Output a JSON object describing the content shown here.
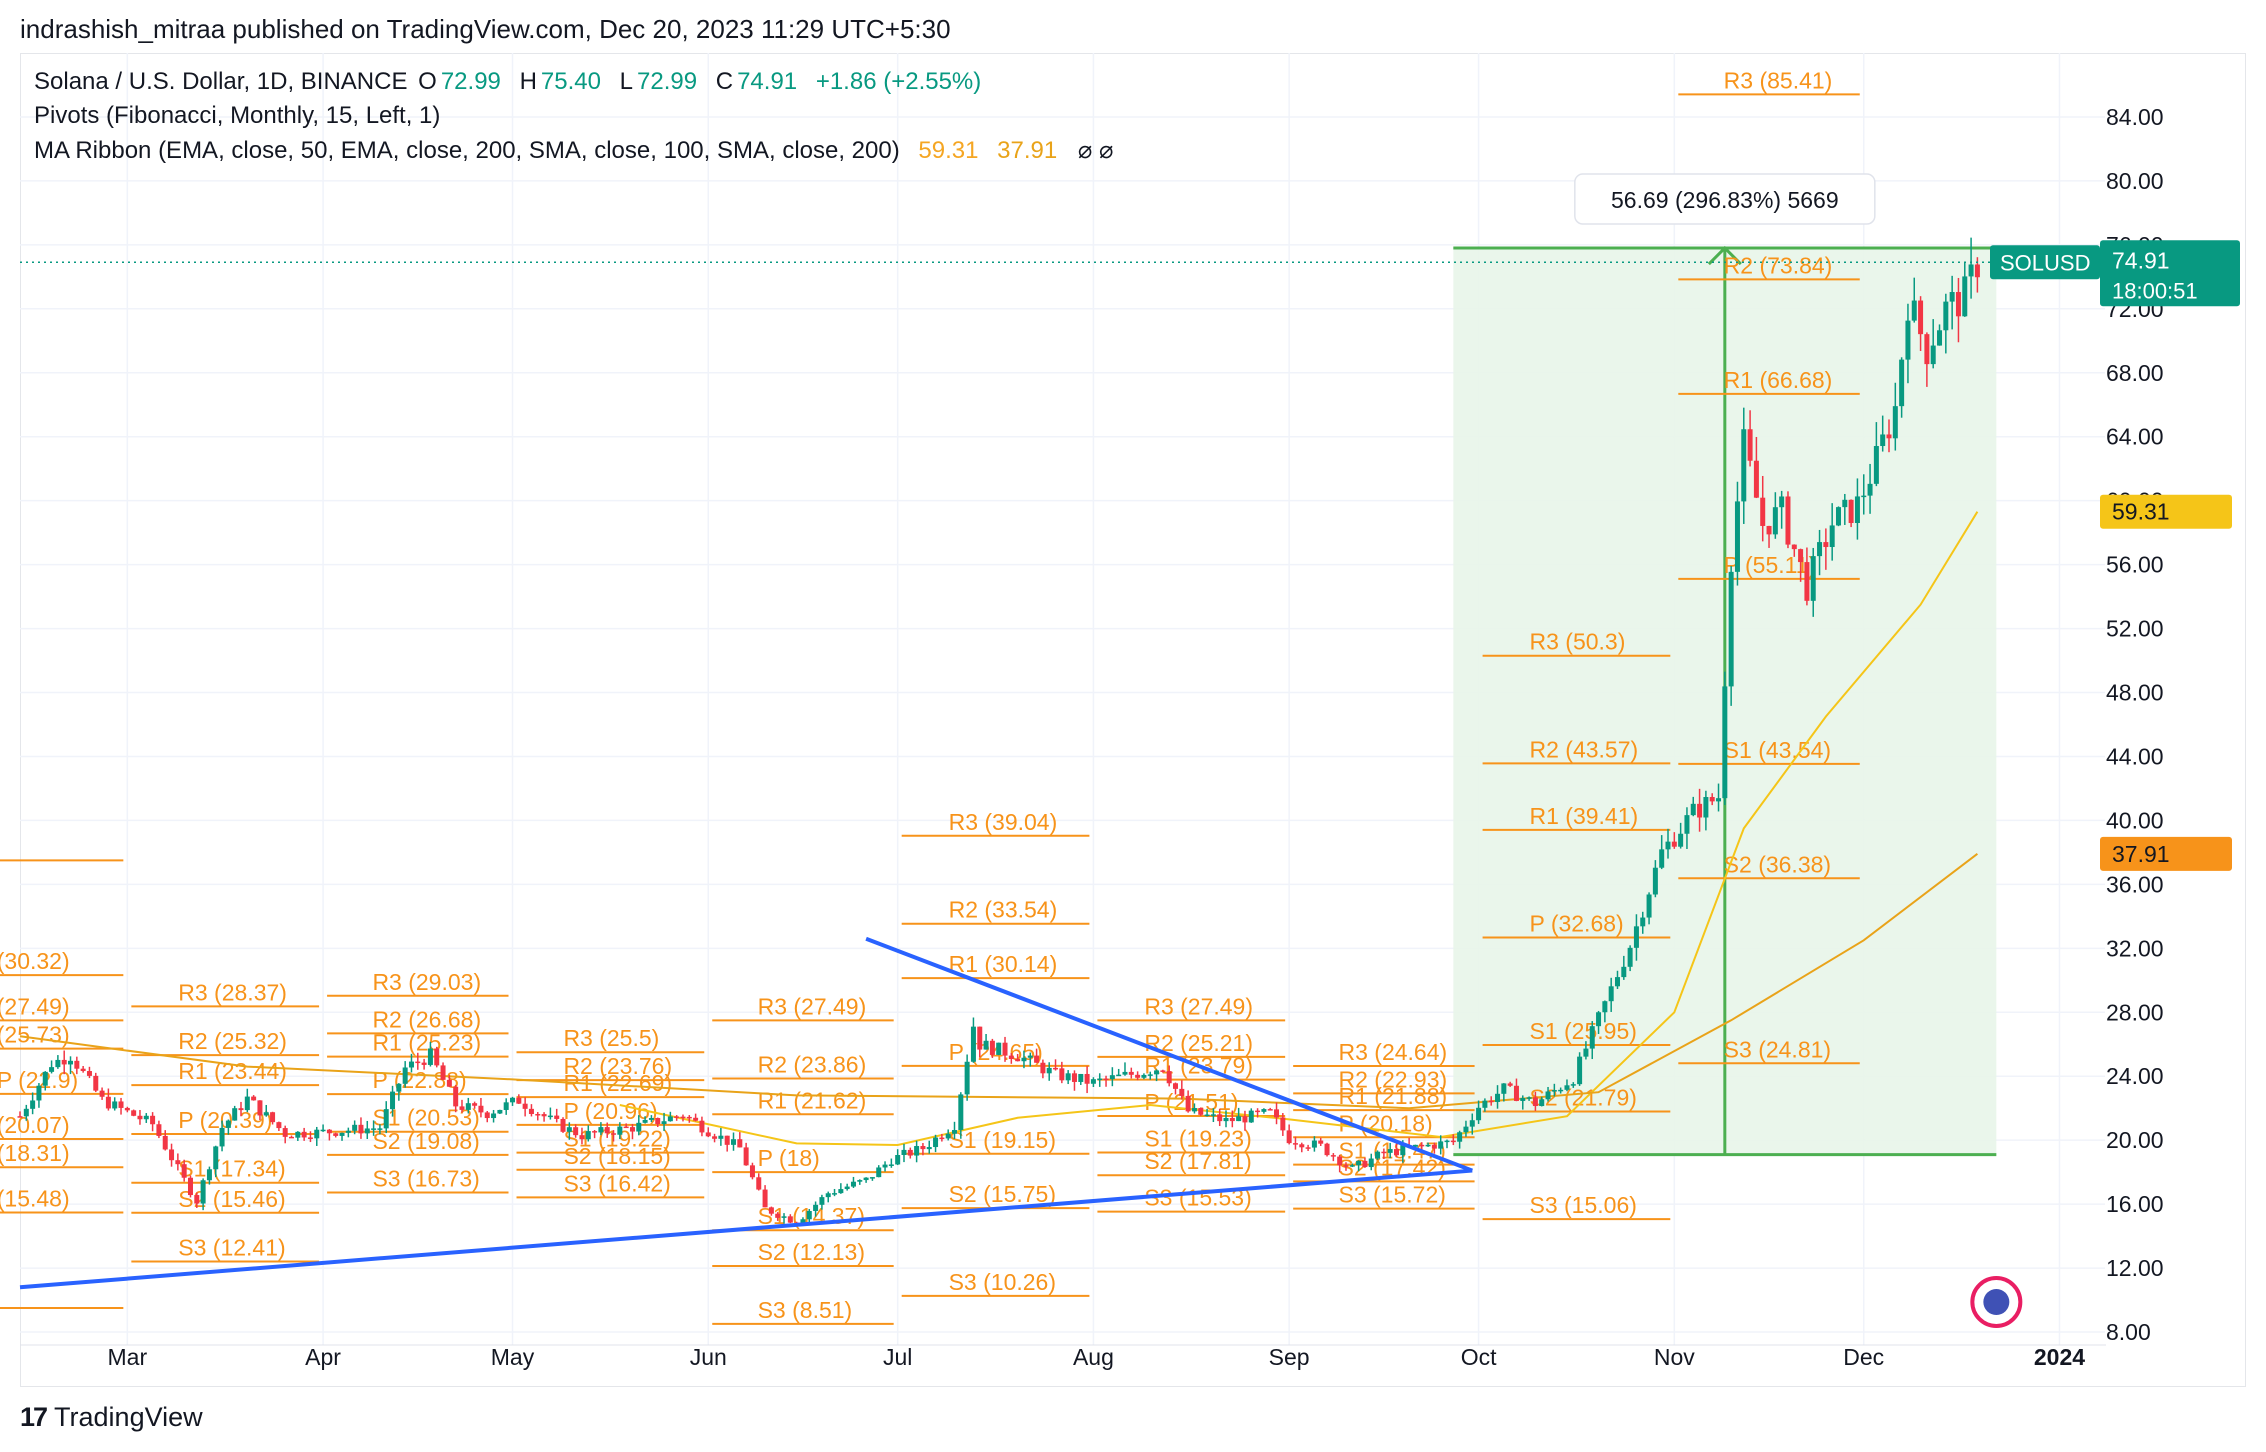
{
  "header": {
    "credit": "indrashish_mitraa published on TradingView.com, Dec 20, 2023 11:29 UTC+5:30"
  },
  "legend": {
    "line1": {
      "symbol": "Solana / U.S. Dollar, 1D, BINANCE",
      "o_label": "O",
      "o": "72.99",
      "h_label": "H",
      "h": "75.40",
      "l_label": "L",
      "l": "72.99",
      "c_label": "C",
      "c": "74.91",
      "change": "+1.86 (+2.55%)"
    },
    "line2": "Pivots (Fibonacci, Monthly, 15, Left, 1)",
    "line3": {
      "text": "MA Ribbon (EMA, close, 50, EMA, close, 200, SMA, close, 100, SMA, close, 200)",
      "v1": "59.31",
      "v2": "37.91",
      "icons": "⌀ ⌀"
    }
  },
  "footer": {
    "brand": "TradingView",
    "mark": "17"
  },
  "colors": {
    "up": "#089981",
    "down": "#f23645",
    "pivot": "#f7931a",
    "ma50": "#f5c518",
    "ma200": "#e9a319",
    "trend": "#2962ff",
    "measure": "#4caf50",
    "measure_fill": "#e8f5e9"
  },
  "chart_data": {
    "type": "candlestick",
    "title": "Solana / U.S. Dollar, 1D, BINANCE",
    "y_axis": {
      "ticks": [
        "8.00",
        "12.00",
        "16.00",
        "20.00",
        "24.00",
        "28.00",
        "32.00",
        "36.00",
        "40.00",
        "44.00",
        "48.00",
        "52.00",
        "56.00",
        "60.00",
        "64.00",
        "68.00",
        "72.00",
        "76.00",
        "80.00",
        "84.00"
      ],
      "range": [
        5,
        88
      ],
      "side": "right"
    },
    "x_axis": {
      "ticks": [
        {
          "label": "Mar",
          "date": "2023-03-01"
        },
        {
          "label": "Apr",
          "date": "2023-04-01"
        },
        {
          "label": "May",
          "date": "2023-05-01"
        },
        {
          "label": "Jun",
          "date": "2023-06-01"
        },
        {
          "label": "Jul",
          "date": "2023-07-01"
        },
        {
          "label": "Aug",
          "date": "2023-08-01"
        },
        {
          "label": "Sep",
          "date": "2023-09-01"
        },
        {
          "label": "Oct",
          "date": "2023-10-01"
        },
        {
          "label": "Nov",
          "date": "2023-11-01"
        },
        {
          "label": "Dec",
          "date": "2023-12-01"
        },
        {
          "label": "2024",
          "date": "2024-01-01"
        }
      ],
      "range": [
        "2023-02-12",
        "2024-01-09"
      ]
    },
    "price_line": {
      "value": 74.91,
      "symbol": "SOLUSD",
      "label": "74.91",
      "countdown": "18:00:51"
    },
    "ma_labels": [
      {
        "value": 59.31,
        "label": "59.31"
      },
      {
        "value": 37.91,
        "label": "37.91"
      }
    ],
    "close_path": [
      [
        "2023-02-12",
        21.5
      ],
      [
        "2023-02-17",
        24.8
      ],
      [
        "2023-02-20",
        25.3
      ],
      [
        "2023-02-25",
        22.5
      ],
      [
        "2023-03-05",
        21.0
      ],
      [
        "2023-03-10",
        17.5
      ],
      [
        "2023-03-12",
        16.2
      ],
      [
        "2023-03-16",
        20.8
      ],
      [
        "2023-03-20",
        22.6
      ],
      [
        "2023-03-26",
        20.4
      ],
      [
        "2023-04-01",
        20.5
      ],
      [
        "2023-04-10",
        20.8
      ],
      [
        "2023-04-14",
        24.5
      ],
      [
        "2023-04-18",
        25.3
      ],
      [
        "2023-04-22",
        22.2
      ],
      [
        "2023-04-27",
        21.7
      ],
      [
        "2023-05-02",
        22.5
      ],
      [
        "2023-05-08",
        21.0
      ],
      [
        "2023-05-12",
        20.3
      ],
      [
        "2023-05-20",
        20.8
      ],
      [
        "2023-05-28",
        21.6
      ],
      [
        "2023-06-01",
        20.6
      ],
      [
        "2023-06-06",
        19.5
      ],
      [
        "2023-06-10",
        15.7
      ],
      [
        "2023-06-15",
        14.9
      ],
      [
        "2023-06-20",
        16.7
      ],
      [
        "2023-06-26",
        17.5
      ],
      [
        "2023-06-30",
        18.8
      ],
      [
        "2023-07-05",
        19.5
      ],
      [
        "2023-07-10",
        21.0
      ],
      [
        "2023-07-13",
        27.2
      ],
      [
        "2023-07-14",
        26.0
      ],
      [
        "2023-07-20",
        25.3
      ],
      [
        "2023-07-26",
        24.1
      ],
      [
        "2023-08-01",
        23.6
      ],
      [
        "2023-08-08",
        24.2
      ],
      [
        "2023-08-12",
        24.6
      ],
      [
        "2023-08-16",
        21.8
      ],
      [
        "2023-08-22",
        21.2
      ],
      [
        "2023-08-29",
        21.7
      ],
      [
        "2023-09-01",
        20.1
      ],
      [
        "2023-09-06",
        19.6
      ],
      [
        "2023-09-11",
        18.2
      ],
      [
        "2023-09-16",
        19.2
      ],
      [
        "2023-09-22",
        19.6
      ],
      [
        "2023-09-27",
        19.9
      ],
      [
        "2023-10-01",
        22.1
      ],
      [
        "2023-10-05",
        23.2
      ],
      [
        "2023-10-10",
        22.3
      ],
      [
        "2023-10-16",
        23.9
      ],
      [
        "2023-10-20",
        27.6
      ],
      [
        "2023-10-25",
        32.2
      ],
      [
        "2023-10-30",
        38.0
      ],
      [
        "2023-11-04",
        40.5
      ],
      [
        "2023-11-08",
        41.5
      ],
      [
        "2023-11-10",
        56.5
      ],
      [
        "2023-11-12",
        63.5
      ],
      [
        "2023-11-15",
        58.5
      ],
      [
        "2023-11-18",
        59.3
      ],
      [
        "2023-11-22",
        54.6
      ],
      [
        "2023-11-26",
        58.6
      ],
      [
        "2023-11-30",
        59.7
      ],
      [
        "2023-12-03",
        62.5
      ],
      [
        "2023-12-06",
        65.8
      ],
      [
        "2023-12-08",
        72.5
      ],
      [
        "2023-12-11",
        69.5
      ],
      [
        "2023-12-14",
        72.0
      ],
      [
        "2023-12-17",
        72.8
      ],
      [
        "2023-12-19",
        74.91
      ]
    ],
    "ma_ribbon": [
      {
        "name": "EMA 50",
        "color": "#f5c518",
        "points": [
          [
            "2023-05-18",
            22.2
          ],
          [
            "2023-06-15",
            19.8
          ],
          [
            "2023-07-01",
            19.7
          ],
          [
            "2023-07-20",
            21.4
          ],
          [
            "2023-08-10",
            22.2
          ],
          [
            "2023-09-01",
            21.3
          ],
          [
            "2023-09-25",
            20.2
          ],
          [
            "2023-10-15",
            21.5
          ],
          [
            "2023-11-01",
            28.0
          ],
          [
            "2023-11-12",
            39.5
          ],
          [
            "2023-11-25",
            46.5
          ],
          [
            "2023-12-10",
            53.5
          ],
          [
            "2023-12-19",
            59.31
          ]
        ]
      },
      {
        "name": "EMA 200",
        "color": "#e9a319",
        "points": [
          [
            "2023-02-12",
            26.5
          ],
          [
            "2023-03-20",
            24.6
          ],
          [
            "2023-05-01",
            23.8
          ],
          [
            "2023-06-15",
            22.8
          ],
          [
            "2023-08-15",
            22.6
          ],
          [
            "2023-09-20",
            22.0
          ],
          [
            "2023-10-20",
            23.0
          ],
          [
            "2023-11-10",
            27.5
          ],
          [
            "2023-12-01",
            32.5
          ],
          [
            "2023-12-19",
            37.91
          ]
        ]
      }
    ],
    "pivot_levels": [
      {
        "period": [
          "2023-02-01",
          "2023-03-01"
        ],
        "levels": [
          [
            "R3",
            30.32,
            "(30.32)"
          ],
          [
            "R2",
            27.49,
            "(27.49)"
          ],
          [
            "R1",
            25.73,
            "(25.73)"
          ],
          [
            "P",
            22.9,
            "P (22.9)"
          ],
          [
            "S1",
            20.07,
            "(20.07)"
          ],
          [
            "S2",
            18.31,
            "(18.31)"
          ],
          [
            "S3",
            15.48,
            "(15.48)"
          ],
          [
            "",
            9.5,
            ""
          ],
          [
            "",
            37.5,
            ""
          ]
        ]
      },
      {
        "period": [
          "2023-03-01",
          "2023-04-01"
        ],
        "levels": [
          [
            "R3",
            28.37,
            "R3 (28.37)"
          ],
          [
            "R2",
            25.32,
            "R2 (25.32)"
          ],
          [
            "R1",
            23.44,
            "R1 (23.44)"
          ],
          [
            "P",
            20.39,
            "P (20.39)"
          ],
          [
            "S1",
            17.34,
            "S1 (17.34)"
          ],
          [
            "S2",
            15.46,
            "S2 (15.46)"
          ],
          [
            "S3",
            12.41,
            "S3 (12.41)"
          ]
        ]
      },
      {
        "period": [
          "2023-04-01",
          "2023-05-01"
        ],
        "levels": [
          [
            "R3",
            29.03,
            "R3 (29.03)"
          ],
          [
            "R2",
            26.68,
            "R2 (26.68)"
          ],
          [
            "R1",
            25.23,
            "R1 (25.23)"
          ],
          [
            "P",
            22.88,
            "P (22.88)"
          ],
          [
            "S1",
            20.53,
            "S1 (20.53)"
          ],
          [
            "S2",
            19.08,
            "S2 (19.08)"
          ],
          [
            "S3",
            16.73,
            "S3 (16.73)"
          ]
        ]
      },
      {
        "period": [
          "2023-05-01",
          "2023-06-01"
        ],
        "levels": [
          [
            "R3",
            25.5,
            "R3 (25.5)"
          ],
          [
            "R2",
            23.76,
            "R2 (23.76)"
          ],
          [
            "R1",
            22.69,
            "R1 (22.69)"
          ],
          [
            "P",
            20.96,
            "P (20.96)"
          ],
          [
            "S1",
            19.22,
            "S1 (19.22)"
          ],
          [
            "S2",
            18.15,
            "S2 (18.15)"
          ],
          [
            "S3",
            16.42,
            "S3 (16.42)"
          ]
        ]
      },
      {
        "period": [
          "2023-06-01",
          "2023-07-01"
        ],
        "levels": [
          [
            "R3",
            27.49,
            "R3 (27.49)"
          ],
          [
            "R2",
            23.86,
            "R2 (23.86)"
          ],
          [
            "R1",
            21.62,
            "R1 (21.62)"
          ],
          [
            "P",
            18,
            "P (18)"
          ],
          [
            "S1",
            14.37,
            "S1 (14.37)"
          ],
          [
            "S2",
            12.13,
            "S2 (12.13)"
          ],
          [
            "S3",
            8.51,
            "S3 (8.51)"
          ]
        ]
      },
      {
        "period": [
          "2023-07-01",
          "2023-08-01"
        ],
        "levels": [
          [
            "R3",
            39.04,
            "R3 (39.04)"
          ],
          [
            "R2",
            33.54,
            "R2 (33.54)"
          ],
          [
            "R1",
            30.14,
            "R1 (30.14)"
          ],
          [
            "P",
            24.65,
            "P (24.65)"
          ],
          [
            "S1",
            19.15,
            "S1 (19.15)"
          ],
          [
            "S2",
            15.75,
            "S2 (15.75)"
          ],
          [
            "S3",
            10.26,
            "S3 (10.26)"
          ]
        ]
      },
      {
        "period": [
          "2023-08-01",
          "2023-09-01"
        ],
        "levels": [
          [
            "R3",
            27.49,
            "R3 (27.49)"
          ],
          [
            "R2",
            25.21,
            "R2 (25.21)"
          ],
          [
            "R1",
            23.79,
            "R1 (23.79)"
          ],
          [
            "P",
            21.51,
            "P (21.51)"
          ],
          [
            "S1",
            19.23,
            "S1 (19.23)"
          ],
          [
            "S2",
            17.81,
            "S2 (17.81)"
          ],
          [
            "S3",
            15.53,
            "S3 (15.53)"
          ]
        ]
      },
      {
        "period": [
          "2023-09-01",
          "2023-10-01"
        ],
        "levels": [
          [
            "R3",
            24.64,
            "R3 (24.64)"
          ],
          [
            "R2",
            22.93,
            "R2 (22.93)"
          ],
          [
            "R1",
            21.88,
            "R1 (21.88)"
          ],
          [
            "P",
            20.18,
            "P (20.18)"
          ],
          [
            "S1",
            18.47,
            "S1 (18.47)"
          ],
          [
            "S2",
            17.42,
            "S2 (17.42)"
          ],
          [
            "S3",
            15.72,
            "S3 (15.72)"
          ]
        ]
      },
      {
        "period": [
          "2023-10-01",
          "2023-11-01"
        ],
        "levels": [
          [
            "R3",
            50.3,
            "R3 (50.3)"
          ],
          [
            "R2",
            43.57,
            "R2 (43.57)"
          ],
          [
            "R1",
            39.41,
            "R1 (39.41)"
          ],
          [
            "P",
            32.68,
            "P (32.68)"
          ],
          [
            "S1",
            25.95,
            "S1 (25.95)"
          ],
          [
            "S2",
            21.79,
            "S2 (21.79)"
          ],
          [
            "S3",
            15.06,
            "S3 (15.06)"
          ]
        ]
      },
      {
        "period": [
          "2023-11-01",
          "2023-12-01"
        ],
        "levels": [
          [
            "R3",
            85.41,
            "R3 (85.41)"
          ],
          [
            "R2",
            73.84,
            "R2 (73.84)"
          ],
          [
            "R1",
            66.68,
            "R1 (66.68)"
          ],
          [
            "P",
            55.11,
            "P (55.11)"
          ],
          [
            "S1",
            43.54,
            "S1 (43.54)"
          ],
          [
            "S2",
            36.38,
            "S2 (36.38)"
          ],
          [
            "S3",
            24.81,
            "S3 (24.81)"
          ]
        ]
      }
    ],
    "trendlines": [
      {
        "from": [
          "2023-02-12",
          10.8
        ],
        "to": [
          "2023-09-30",
          18.1
        ]
      },
      {
        "from": [
          "2023-06-26",
          32.6
        ],
        "to": [
          "2023-09-30",
          18.1
        ]
      }
    ],
    "measure": {
      "from_date": "2023-09-27",
      "to_date": "2023-12-22",
      "low": 19.1,
      "high": 75.8,
      "arrow_date": "2023-11-09",
      "label": "56.69 (296.83%) 5669"
    }
  }
}
